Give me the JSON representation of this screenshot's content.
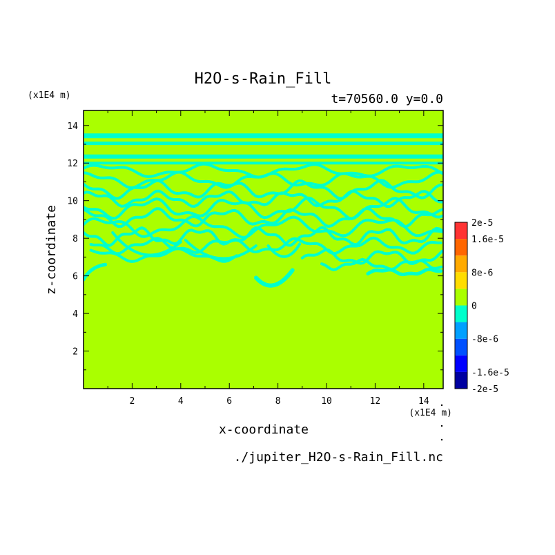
{
  "chart_data": {
    "type": "heatmap",
    "title": "H2O-s-Rain_Fill",
    "subtitle": "t=70560.0 y=0.0",
    "xlabel": "x-coordinate",
    "ylabel": "z-coordinate",
    "x_unit": "(x1E4 m)",
    "z_unit": "(x1E4 m)",
    "source_file": "./jupiter_H2O-s-Rain_Fill.nc",
    "xlim": [
      0,
      14.8
    ],
    "ylim": [
      0,
      14.8
    ],
    "x_ticks": [
      2,
      4,
      6,
      8,
      10,
      12,
      14
    ],
    "y_ticks": [
      2,
      4,
      6,
      8,
      10,
      12,
      14
    ],
    "grid": false,
    "background_level_color": "#aaff00",
    "field_summary": {
      "dominant_value": 0,
      "negative_band_value": -4e-06,
      "negative_band_color": "#00ffcc",
      "uniform_below_z": 5
    },
    "colorbar": {
      "levels": [
        -2e-05,
        -1.6e-05,
        -1.2e-05,
        -8e-06,
        -4e-06,
        0,
        4e-06,
        8e-06,
        1.2e-05,
        1.6e-05,
        2e-05
      ],
      "colors": [
        "#0000a0",
        "#0000ff",
        "#0050ff",
        "#00a0ff",
        "#00ffcc",
        "#aaff00",
        "#ffdd00",
        "#ffaa00",
        "#ff6600",
        "#ff3333"
      ],
      "tick_labels": [
        {
          "value": 2e-05,
          "label": "2e-5"
        },
        {
          "value": 1.6e-05,
          "label": "1.6e-5"
        },
        {
          "value": 8e-06,
          "label": "8e-6"
        },
        {
          "value": 0,
          "label": "0"
        },
        {
          "value": -8e-06,
          "label": "-8e-6"
        },
        {
          "value": -1.6e-05,
          "label": "-1.6e-5"
        },
        {
          "value": -2e-05,
          "label": "-2e-5"
        }
      ]
    }
  }
}
